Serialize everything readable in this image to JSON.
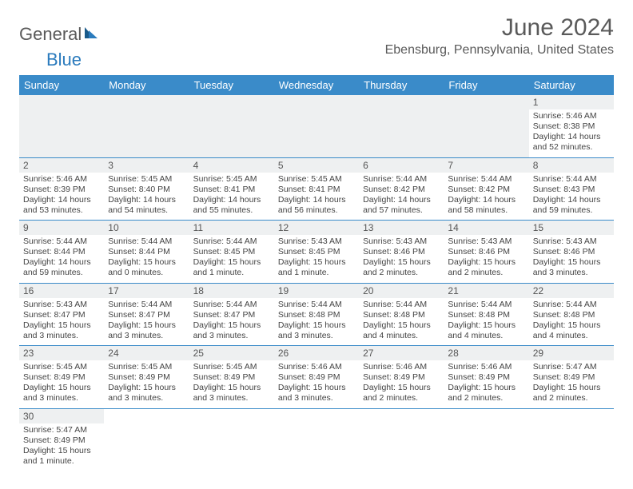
{
  "brand": {
    "part1": "General",
    "part2": "Blue"
  },
  "title": "June 2024",
  "location": "Ebensburg, Pennsylvania, United States",
  "colors": {
    "header_bg": "#3a8bc9",
    "header_text": "#ffffff",
    "daynum_bg": "#eef0f1",
    "border": "#3a8bc9",
    "brand_blue": "#2b7bbd",
    "text": "#444444"
  },
  "day_headers": [
    "Sunday",
    "Monday",
    "Tuesday",
    "Wednesday",
    "Thursday",
    "Friday",
    "Saturday"
  ],
  "weeks": [
    [
      null,
      null,
      null,
      null,
      null,
      null,
      {
        "n": "1",
        "sr": "Sunrise: 5:46 AM",
        "ss": "Sunset: 8:38 PM",
        "dl": "Daylight: 14 hours and 52 minutes."
      }
    ],
    [
      {
        "n": "2",
        "sr": "Sunrise: 5:46 AM",
        "ss": "Sunset: 8:39 PM",
        "dl": "Daylight: 14 hours and 53 minutes."
      },
      {
        "n": "3",
        "sr": "Sunrise: 5:45 AM",
        "ss": "Sunset: 8:40 PM",
        "dl": "Daylight: 14 hours and 54 minutes."
      },
      {
        "n": "4",
        "sr": "Sunrise: 5:45 AM",
        "ss": "Sunset: 8:41 PM",
        "dl": "Daylight: 14 hours and 55 minutes."
      },
      {
        "n": "5",
        "sr": "Sunrise: 5:45 AM",
        "ss": "Sunset: 8:41 PM",
        "dl": "Daylight: 14 hours and 56 minutes."
      },
      {
        "n": "6",
        "sr": "Sunrise: 5:44 AM",
        "ss": "Sunset: 8:42 PM",
        "dl": "Daylight: 14 hours and 57 minutes."
      },
      {
        "n": "7",
        "sr": "Sunrise: 5:44 AM",
        "ss": "Sunset: 8:42 PM",
        "dl": "Daylight: 14 hours and 58 minutes."
      },
      {
        "n": "8",
        "sr": "Sunrise: 5:44 AM",
        "ss": "Sunset: 8:43 PM",
        "dl": "Daylight: 14 hours and 59 minutes."
      }
    ],
    [
      {
        "n": "9",
        "sr": "Sunrise: 5:44 AM",
        "ss": "Sunset: 8:44 PM",
        "dl": "Daylight: 14 hours and 59 minutes."
      },
      {
        "n": "10",
        "sr": "Sunrise: 5:44 AM",
        "ss": "Sunset: 8:44 PM",
        "dl": "Daylight: 15 hours and 0 minutes."
      },
      {
        "n": "11",
        "sr": "Sunrise: 5:44 AM",
        "ss": "Sunset: 8:45 PM",
        "dl": "Daylight: 15 hours and 1 minute."
      },
      {
        "n": "12",
        "sr": "Sunrise: 5:43 AM",
        "ss": "Sunset: 8:45 PM",
        "dl": "Daylight: 15 hours and 1 minute."
      },
      {
        "n": "13",
        "sr": "Sunrise: 5:43 AM",
        "ss": "Sunset: 8:46 PM",
        "dl": "Daylight: 15 hours and 2 minutes."
      },
      {
        "n": "14",
        "sr": "Sunrise: 5:43 AM",
        "ss": "Sunset: 8:46 PM",
        "dl": "Daylight: 15 hours and 2 minutes."
      },
      {
        "n": "15",
        "sr": "Sunrise: 5:43 AM",
        "ss": "Sunset: 8:46 PM",
        "dl": "Daylight: 15 hours and 3 minutes."
      }
    ],
    [
      {
        "n": "16",
        "sr": "Sunrise: 5:43 AM",
        "ss": "Sunset: 8:47 PM",
        "dl": "Daylight: 15 hours and 3 minutes."
      },
      {
        "n": "17",
        "sr": "Sunrise: 5:44 AM",
        "ss": "Sunset: 8:47 PM",
        "dl": "Daylight: 15 hours and 3 minutes."
      },
      {
        "n": "18",
        "sr": "Sunrise: 5:44 AM",
        "ss": "Sunset: 8:47 PM",
        "dl": "Daylight: 15 hours and 3 minutes."
      },
      {
        "n": "19",
        "sr": "Sunrise: 5:44 AM",
        "ss": "Sunset: 8:48 PM",
        "dl": "Daylight: 15 hours and 3 minutes."
      },
      {
        "n": "20",
        "sr": "Sunrise: 5:44 AM",
        "ss": "Sunset: 8:48 PM",
        "dl": "Daylight: 15 hours and 4 minutes."
      },
      {
        "n": "21",
        "sr": "Sunrise: 5:44 AM",
        "ss": "Sunset: 8:48 PM",
        "dl": "Daylight: 15 hours and 4 minutes."
      },
      {
        "n": "22",
        "sr": "Sunrise: 5:44 AM",
        "ss": "Sunset: 8:48 PM",
        "dl": "Daylight: 15 hours and 4 minutes."
      }
    ],
    [
      {
        "n": "23",
        "sr": "Sunrise: 5:45 AM",
        "ss": "Sunset: 8:49 PM",
        "dl": "Daylight: 15 hours and 3 minutes."
      },
      {
        "n": "24",
        "sr": "Sunrise: 5:45 AM",
        "ss": "Sunset: 8:49 PM",
        "dl": "Daylight: 15 hours and 3 minutes."
      },
      {
        "n": "25",
        "sr": "Sunrise: 5:45 AM",
        "ss": "Sunset: 8:49 PM",
        "dl": "Daylight: 15 hours and 3 minutes."
      },
      {
        "n": "26",
        "sr": "Sunrise: 5:46 AM",
        "ss": "Sunset: 8:49 PM",
        "dl": "Daylight: 15 hours and 3 minutes."
      },
      {
        "n": "27",
        "sr": "Sunrise: 5:46 AM",
        "ss": "Sunset: 8:49 PM",
        "dl": "Daylight: 15 hours and 2 minutes."
      },
      {
        "n": "28",
        "sr": "Sunrise: 5:46 AM",
        "ss": "Sunset: 8:49 PM",
        "dl": "Daylight: 15 hours and 2 minutes."
      },
      {
        "n": "29",
        "sr": "Sunrise: 5:47 AM",
        "ss": "Sunset: 8:49 PM",
        "dl": "Daylight: 15 hours and 2 minutes."
      }
    ],
    [
      {
        "n": "30",
        "sr": "Sunrise: 5:47 AM",
        "ss": "Sunset: 8:49 PM",
        "dl": "Daylight: 15 hours and 1 minute."
      },
      null,
      null,
      null,
      null,
      null,
      null
    ]
  ]
}
